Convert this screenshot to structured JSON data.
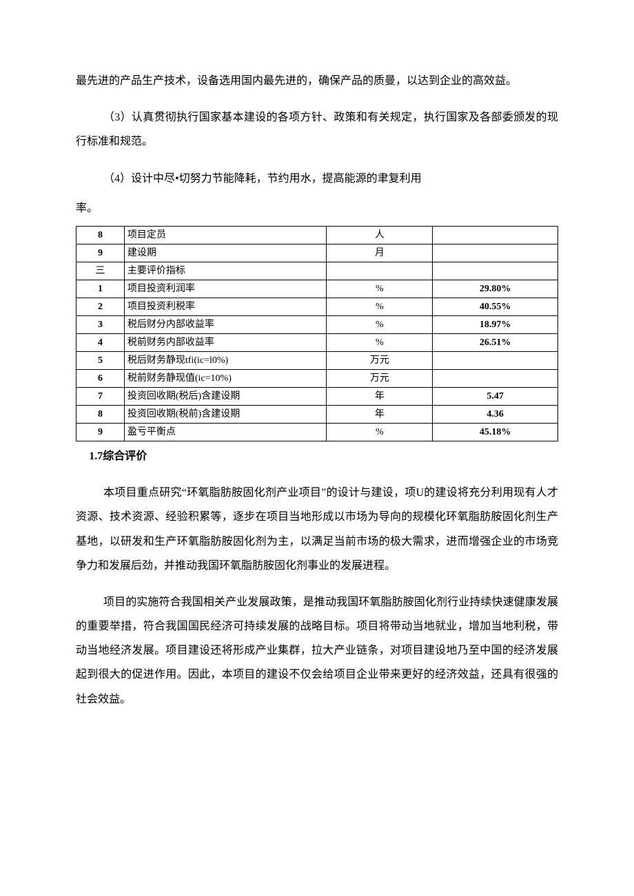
{
  "paragraphs": {
    "p1": "最先进的产品生产技术，设备选用国内最先进的，确保产品的质曼，以达到企业的高效益。",
    "p2": "（3）认真贯彻执行国家基本建设的各项方针、政策和有关规定，执行国家及各部委颁发的现行标准和规范。",
    "p3": "（4）设计中尽•切努力节能降耗，节约用水，提高能源的聿复利用",
    "p4": "率。"
  },
  "table": {
    "rows": [
      {
        "num": "8",
        "name": "项目定员",
        "unit": "人",
        "value": ""
      },
      {
        "num": "9",
        "name": "建设期",
        "unit": "月",
        "value": ""
      },
      {
        "num": "三",
        "name": "主要评价指标",
        "unit": "",
        "value": "",
        "cn": true
      },
      {
        "num": "1",
        "name": "项目投资利润率",
        "unit": "%",
        "value": "29.80%"
      },
      {
        "num": "2",
        "name": "项目投资利税率",
        "unit": "%",
        "value": "40.55%"
      },
      {
        "num": "3",
        "name": "税后财分内部收益率",
        "unit": "%",
        "value": "18.97%"
      },
      {
        "num": "4",
        "name": "税前财务内部收益率",
        "unit": "%",
        "value": "26.51%"
      },
      {
        "num": "5",
        "name": "税后财务静现tfi(ic=l0%)",
        "unit": "万元",
        "value": ""
      },
      {
        "num": "6",
        "name": "税前财务静现值(ic=10%)",
        "unit": "万元",
        "value": ""
      },
      {
        "num": "7",
        "name": "投资回收期(税后)含建设期",
        "unit": "年",
        "value": "5.47"
      },
      {
        "num": "8",
        "name": "投资回收期(税前)含建设期",
        "unit": "年",
        "value": "4.36"
      },
      {
        "num": "9",
        "name": "盈亏平衡点",
        "unit": "%",
        "value": "45.18%"
      }
    ]
  },
  "section": {
    "title": "1.7综合评价",
    "body1": "本项目重点研究“环氧脂肪胺固化剂产业项目”的设计与建设，项U的建设将充分利用现有人才资源、技术资源、经验积累等，逐步在项目当地形成以市场为导向的规模化环氧脂肪胺固化剂生产基地，以研发和生产环氧脂肪胺固化剂为主，以满足当前市场的极大需求，进而增强企业的市场竞争力和发展后劲，并推动我国环氧脂肪胺固化剂事业的发展进程。",
    "body2": "项目的实施符合我国相关产业发展政策，是推动我国环氧脂肪胺固化剂行业持续快速健康发展的重要举措，符合我国国民经济可持续发展的战略目标。项目将带动当地就业，增加当地利税，带动当地经济发展。项目建设还将形成产业集群，拉大产业链条，对项目建设地乃至中国的经济发展起到很大的促进作用。因此，本项目的建设不仅会给项目企业带来更好的经济效益，还具有很强的社会效益。"
  }
}
